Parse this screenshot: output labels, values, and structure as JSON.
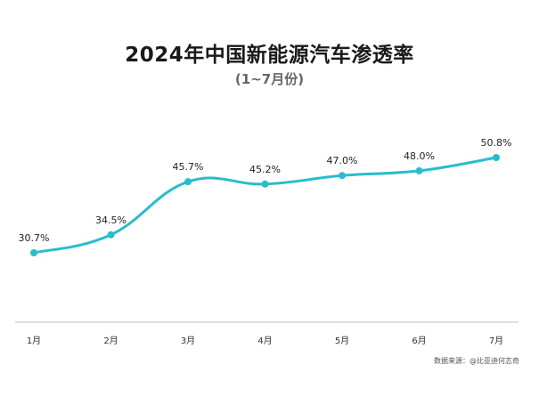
{
  "title": "2024年中国新能源汽车渗透率",
  "subtitle": "(1~7月份)",
  "source": "数据来源：@比亚迪何志奇",
  "colors": {
    "line": "#29bccc",
    "axis": "#bdbdbd",
    "text": "#222222"
  },
  "chart_data": {
    "type": "line",
    "title": "2024年中国新能源汽车渗透率",
    "subtitle": "(1~7月份)",
    "categories": [
      "1月",
      "2月",
      "3月",
      "4月",
      "5月",
      "6月",
      "7月"
    ],
    "series": [
      {
        "values": [
          30.7,
          34.5,
          45.7,
          45.2,
          47.0,
          48.0,
          50.8
        ]
      }
    ],
    "data_labels": [
      "30.7%",
      "34.5%",
      "45.7%",
      "45.2%",
      "47.0%",
      "48.0%",
      "50.8%"
    ],
    "smooth": true,
    "grid": false,
    "legend": "none"
  }
}
